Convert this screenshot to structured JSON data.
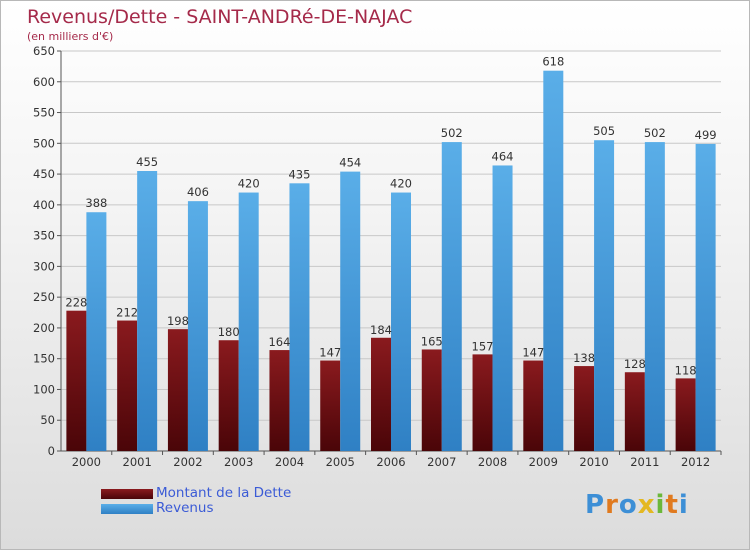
{
  "header": {
    "title": "Revenus/Dette - SAINT-ANDRé-DE-NAJAC",
    "subtitle": "(en milliers d'€)"
  },
  "legend": {
    "items": [
      {
        "label": "Montant de la Dette",
        "color": "#6b0f12"
      },
      {
        "label": "Revenus",
        "color": "#3d97db"
      }
    ]
  },
  "logo": {
    "text": "Proxiti"
  },
  "chart_data": {
    "type": "bar",
    "title": "Revenus/Dette - SAINT-ANDRé-DE-NAJAC",
    "subtitle": "(en milliers d'€)",
    "categories": [
      "2000",
      "2001",
      "2002",
      "2003",
      "2004",
      "2005",
      "2006",
      "2007",
      "2008",
      "2009",
      "2010",
      "2011",
      "2012"
    ],
    "series": [
      {
        "name": "Montant de la Dette",
        "color": "#6b0f12",
        "values": [
          228,
          212,
          198,
          180,
          164,
          147,
          184,
          165,
          157,
          147,
          138,
          128,
          118
        ]
      },
      {
        "name": "Revenus",
        "color": "#3d97db",
        "values": [
          388,
          455,
          406,
          420,
          435,
          454,
          420,
          502,
          464,
          618,
          505,
          502,
          499
        ]
      }
    ],
    "ylim": [
      0,
      650
    ],
    "yticks": [
      0,
      50,
      100,
      150,
      200,
      250,
      300,
      350,
      400,
      450,
      500,
      550,
      600,
      650
    ],
    "grid": true,
    "legend_position": "bottom-left"
  }
}
